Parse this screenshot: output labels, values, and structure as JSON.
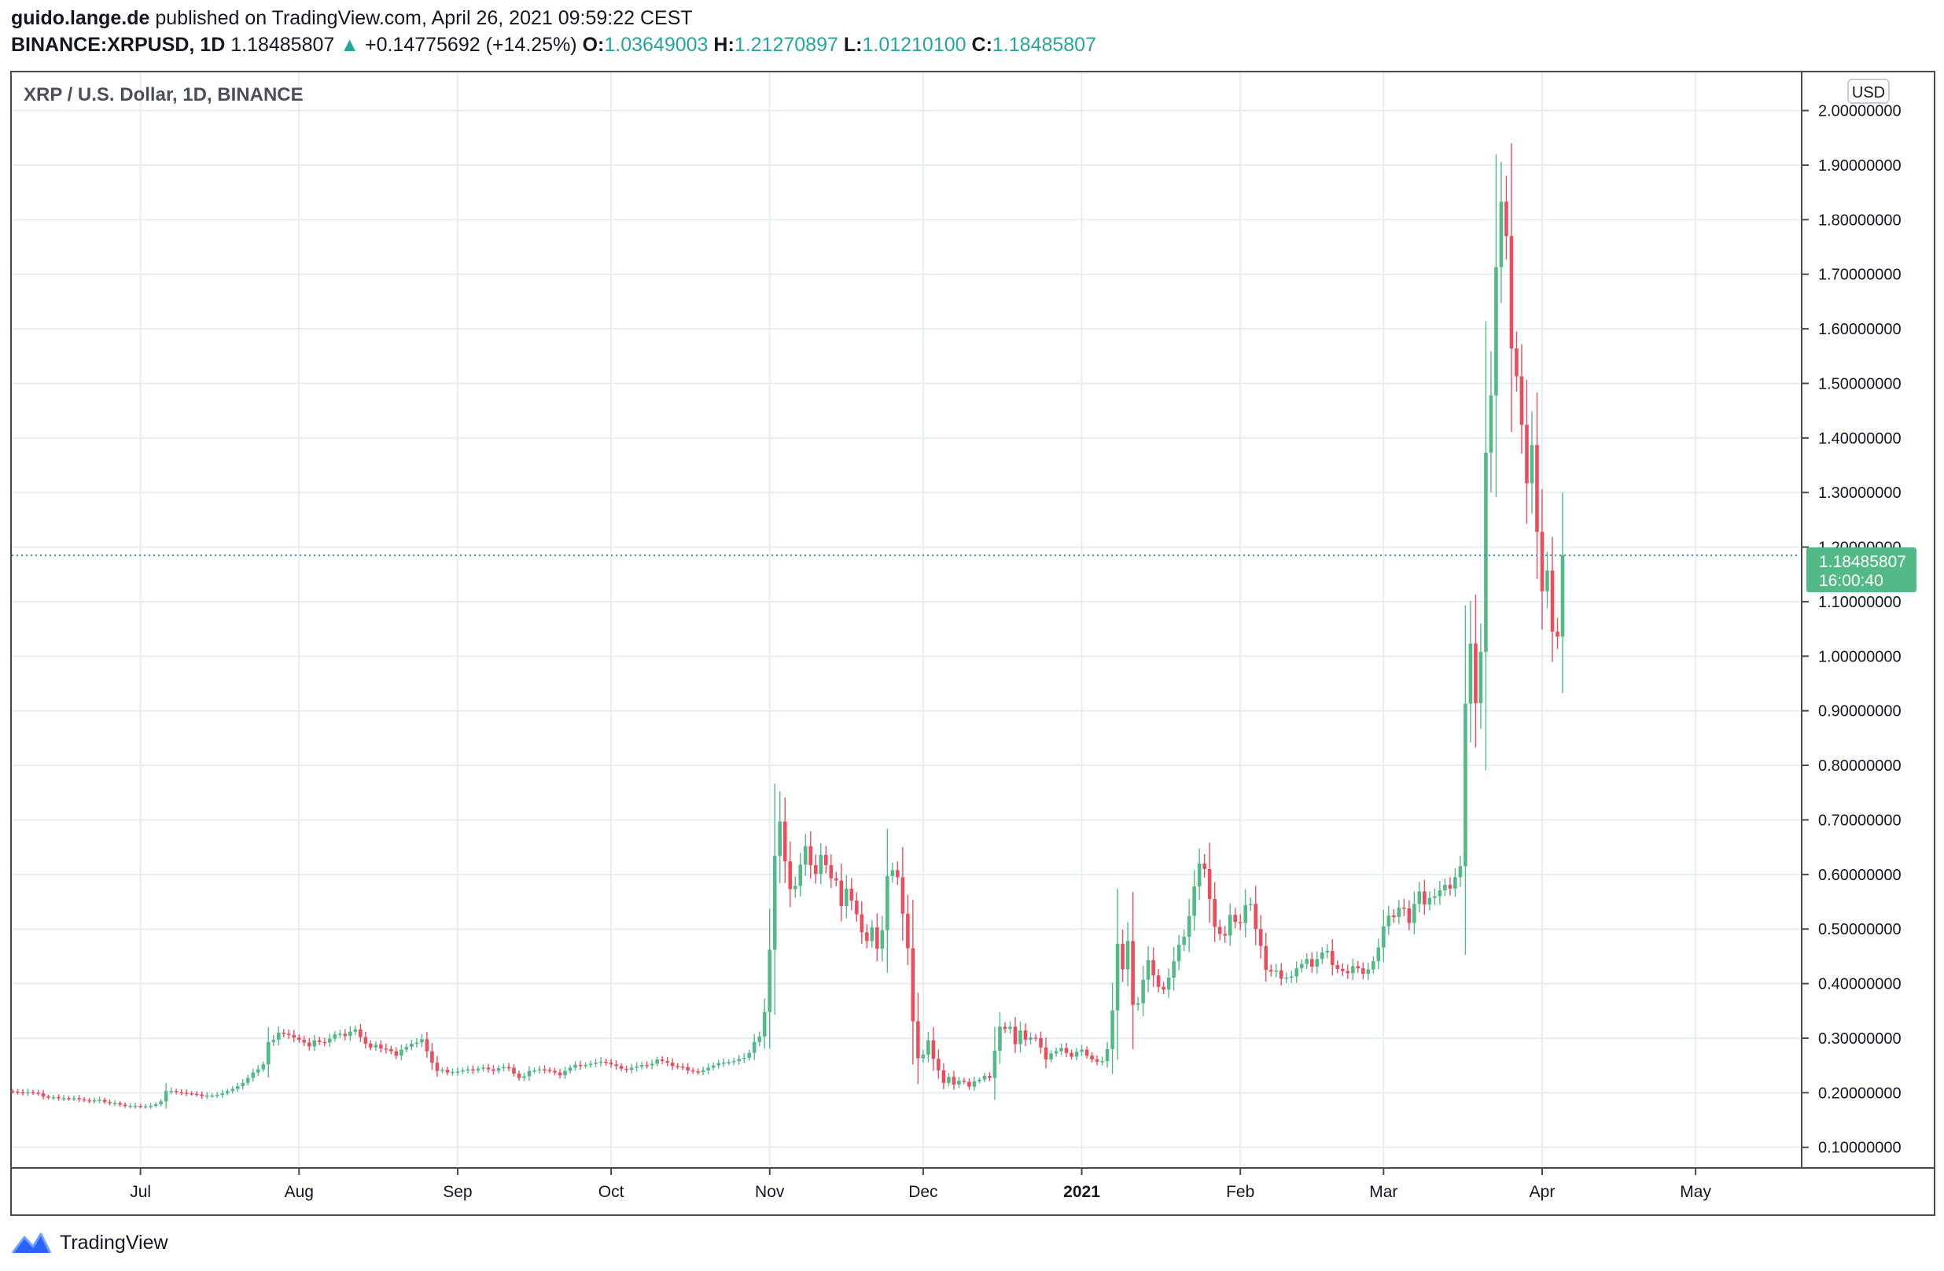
{
  "header": {
    "author": "guido.lange.de",
    "published_text": "published on TradingView.com, April 26, 2021 09:59:22 CEST",
    "symbol": "BINANCE:XRPUSD, 1D",
    "last": "1.18485807",
    "change_arrow": "▲",
    "change": "+0.14775692 (+14.25%)",
    "o_label": "O:",
    "o_value": "1.03649003",
    "h_label": "H:",
    "h_value": "1.21270897",
    "l_label": "L:",
    "l_value": "1.01210100",
    "c_label": "C:",
    "c_value": "1.18485807"
  },
  "chart_title": "XRP / U.S. Dollar, 1D, BINANCE",
  "currency_badge": "USD",
  "price_label": {
    "price": "1.18485807",
    "countdown": "16:00:40"
  },
  "footer": {
    "brand": "TradingView",
    "logo_icon": "tradingview-logo-icon"
  },
  "colors": {
    "up": "#53b987",
    "down": "#eb4d5c",
    "grid": "#e6eef3",
    "price_line": "#26a69a",
    "text_up": "#26a69a"
  },
  "chart_data": {
    "type": "candlestick",
    "title": "XRP / U.S. Dollar, 1D, BINANCE",
    "interval": "1D",
    "start_date": "2020-06-06",
    "x_ticks": [
      "Jul",
      "Aug",
      "Sep",
      "Oct",
      "Nov",
      "Dec",
      "2021",
      "Feb",
      "Mar",
      "Apr",
      "May"
    ],
    "y_ticks": [
      "2.00000000",
      "1.90000000",
      "1.80000000",
      "1.70000000",
      "1.60000000",
      "1.50000000",
      "1.40000000",
      "1.30000000",
      "1.20000000",
      "1.10000000",
      "1.00000000",
      "0.90000000",
      "0.80000000",
      "0.70000000",
      "0.60000000",
      "0.50000000",
      "0.40000000",
      "0.30000000",
      "0.20000000",
      "0.10000000"
    ],
    "ylim": [
      0.065,
      2.07
    ],
    "grid": true,
    "last_price": 1.18485807,
    "closes": [
      0.202,
      0.201,
      0.2,
      0.201,
      0.2,
      0.199,
      0.193,
      0.191,
      0.192,
      0.19,
      0.19,
      0.189,
      0.19,
      0.188,
      0.186,
      0.185,
      0.186,
      0.187,
      0.183,
      0.181,
      0.181,
      0.178,
      0.176,
      0.176,
      0.176,
      0.175,
      0.175,
      0.176,
      0.179,
      0.184,
      0.203,
      0.203,
      0.201,
      0.2,
      0.199,
      0.198,
      0.197,
      0.194,
      0.195,
      0.195,
      0.196,
      0.199,
      0.203,
      0.207,
      0.212,
      0.218,
      0.227,
      0.237,
      0.243,
      0.252,
      0.293,
      0.297,
      0.31,
      0.308,
      0.306,
      0.301,
      0.297,
      0.292,
      0.285,
      0.296,
      0.293,
      0.292,
      0.299,
      0.307,
      0.308,
      0.304,
      0.312,
      0.316,
      0.302,
      0.29,
      0.283,
      0.288,
      0.281,
      0.28,
      0.276,
      0.268,
      0.279,
      0.284,
      0.29,
      0.292,
      0.298,
      0.276,
      0.255,
      0.24,
      0.242,
      0.237,
      0.238,
      0.239,
      0.241,
      0.243,
      0.241,
      0.244,
      0.246,
      0.243,
      0.24,
      0.245,
      0.247,
      0.246,
      0.235,
      0.227,
      0.23,
      0.24,
      0.241,
      0.243,
      0.242,
      0.24,
      0.237,
      0.232,
      0.24,
      0.246,
      0.251,
      0.249,
      0.251,
      0.253,
      0.255,
      0.257,
      0.255,
      0.252,
      0.249,
      0.244,
      0.242,
      0.246,
      0.248,
      0.251,
      0.25,
      0.253,
      0.261,
      0.258,
      0.255,
      0.249,
      0.248,
      0.247,
      0.241,
      0.239,
      0.238,
      0.241,
      0.246,
      0.25,
      0.254,
      0.255,
      0.256,
      0.258,
      0.262,
      0.264,
      0.273,
      0.293,
      0.303,
      0.348,
      0.462,
      0.634,
      0.697,
      0.624,
      0.573,
      0.579,
      0.618,
      0.652,
      0.617,
      0.601,
      0.636,
      0.617,
      0.593,
      0.589,
      0.542,
      0.574,
      0.552,
      0.527,
      0.494,
      0.478,
      0.503,
      0.464,
      0.498,
      0.597,
      0.608,
      0.595,
      0.528,
      0.465,
      0.331,
      0.263,
      0.27,
      0.296,
      0.262,
      0.241,
      0.218,
      0.229,
      0.215,
      0.222,
      0.22,
      0.211,
      0.221,
      0.224,
      0.231,
      0.227,
      0.277,
      0.321,
      0.317,
      0.321,
      0.289,
      0.314,
      0.297,
      0.301,
      0.3,
      0.283,
      0.261,
      0.272,
      0.276,
      0.282,
      0.273,
      0.266,
      0.275,
      0.279,
      0.268,
      0.261,
      0.257,
      0.258,
      0.28,
      0.351,
      0.473,
      0.426,
      0.478,
      0.361,
      0.364,
      0.407,
      0.443,
      0.415,
      0.394,
      0.389,
      0.411,
      0.441,
      0.471,
      0.486,
      0.524,
      0.578,
      0.62,
      0.61,
      0.555,
      0.504,
      0.491,
      0.488,
      0.526,
      0.513,
      0.511,
      0.544,
      0.546,
      0.5,
      0.469,
      0.425,
      0.422,
      0.424,
      0.409,
      0.411,
      0.413,
      0.428,
      0.436,
      0.445,
      0.431,
      0.445,
      0.457,
      0.46,
      0.434,
      0.427,
      0.423,
      0.419,
      0.432,
      0.428,
      0.418,
      0.426,
      0.441,
      0.466,
      0.505,
      0.525,
      0.522,
      0.539,
      0.538,
      0.511,
      0.546,
      0.569,
      0.545,
      0.557,
      0.56,
      0.571,
      0.581,
      0.574,
      0.595,
      0.615,
      0.913,
      1.023,
      0.914,
      1.008,
      1.373,
      1.478,
      1.713,
      1.833,
      1.77,
      1.564,
      1.513,
      1.424,
      1.317,
      1.387,
      1.228,
      1.119,
      1.157,
      1.045,
      1.036,
      1.185
    ]
  }
}
